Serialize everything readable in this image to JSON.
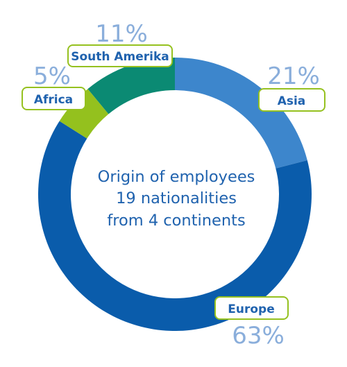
{
  "chart_data": {
    "type": "pie",
    "categories": [
      "Asia",
      "Europe",
      "Africa",
      "South Amerika"
    ],
    "values": [
      21,
      63,
      5,
      11
    ],
    "value_labels": [
      "21%",
      "63%",
      "5%",
      "11%"
    ],
    "colors": [
      "#3d86cc",
      "#0a5cab",
      "#94c11e",
      "#0b8a73"
    ],
    "center_text": [
      "Origin of employees",
      "19 nationalities",
      "from 4 continents"
    ],
    "donut": true
  }
}
